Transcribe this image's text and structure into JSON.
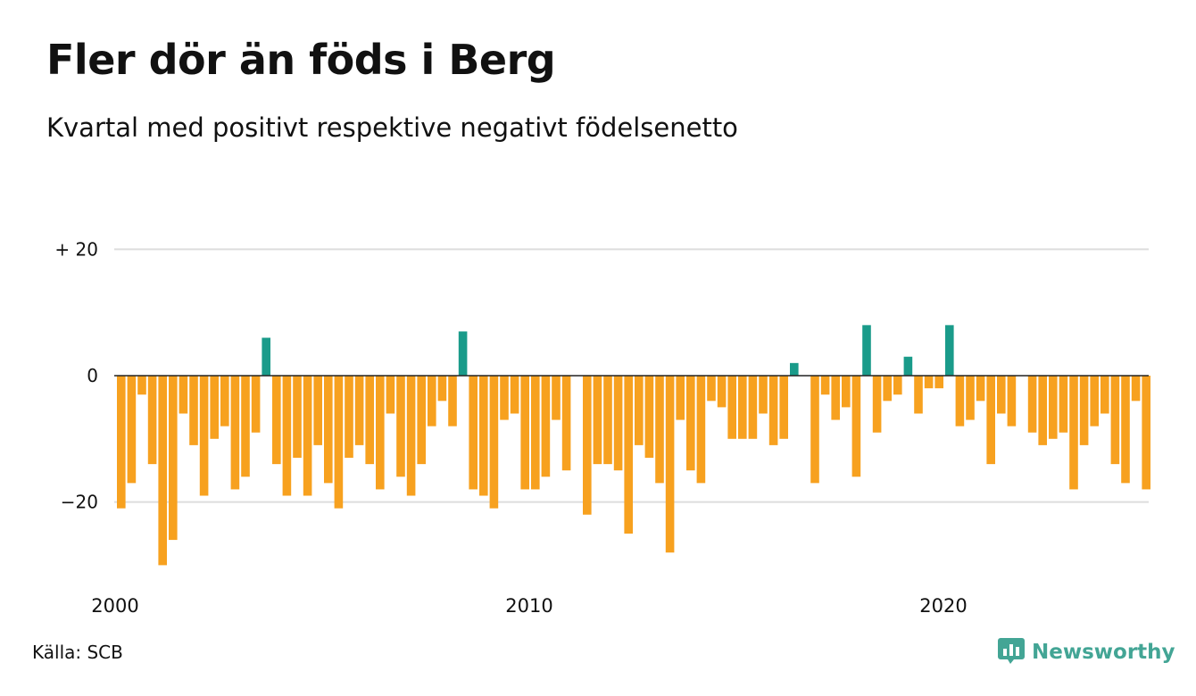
{
  "title": "Fler dör än föds i Berg",
  "subtitle": "Kvartal med positivt respektive negativt födelsenetto",
  "source": "Källa: SCB",
  "brand": {
    "name": "Newsworthy",
    "icon": "newsworthy-logo-icon"
  },
  "colors": {
    "positive": "#1a9b8a",
    "negative": "#f7a11f",
    "grid": "#dddddd",
    "axis": "#222222"
  },
  "chart_data": {
    "type": "bar",
    "title": "Fler dör än föds i Berg",
    "subtitle": "Kvartal med positivt respektive negativt födelsenetto",
    "x_start": 2000,
    "x_unit": "year (quarterly bars)",
    "x_ticks": [
      {
        "value": 2000,
        "label": "2000"
      },
      {
        "value": 2010,
        "label": "2010"
      },
      {
        "value": 2020,
        "label": "2020"
      }
    ],
    "y_ticks": [
      {
        "value": 20,
        "label": "+ 20"
      },
      {
        "value": 0,
        "label": "0"
      },
      {
        "value": -20,
        "label": "−20"
      }
    ],
    "ylim": [
      -30,
      20
    ],
    "grid": true,
    "values": [
      -21,
      -17,
      -3,
      -14,
      -30,
      -26,
      -6,
      -11,
      -19,
      -10,
      -8,
      -18,
      -16,
      -9,
      6,
      -14,
      -19,
      -13,
      -19,
      -11,
      -17,
      -21,
      -13,
      -11,
      -14,
      -18,
      -6,
      -16,
      -19,
      -14,
      -8,
      -4,
      -8,
      7,
      -18,
      -19,
      -21,
      -7,
      -6,
      -18,
      -18,
      -16,
      -7,
      -15,
      0,
      -22,
      -14,
      -14,
      -15,
      -25,
      -11,
      -13,
      -17,
      -28,
      -7,
      -15,
      -17,
      -4,
      -5,
      -10,
      -10,
      -10,
      -6,
      -11,
      -10,
      2,
      0,
      -17,
      -3,
      -7,
      -5,
      -16,
      8,
      -9,
      -4,
      -3,
      3,
      -6,
      -2,
      -2,
      8,
      -8,
      -7,
      -4,
      -14,
      -6,
      -8,
      0,
      -9,
      -11,
      -10,
      -9,
      -18,
      -11,
      -8,
      -6,
      -14,
      -17,
      -4,
      -18
    ]
  }
}
